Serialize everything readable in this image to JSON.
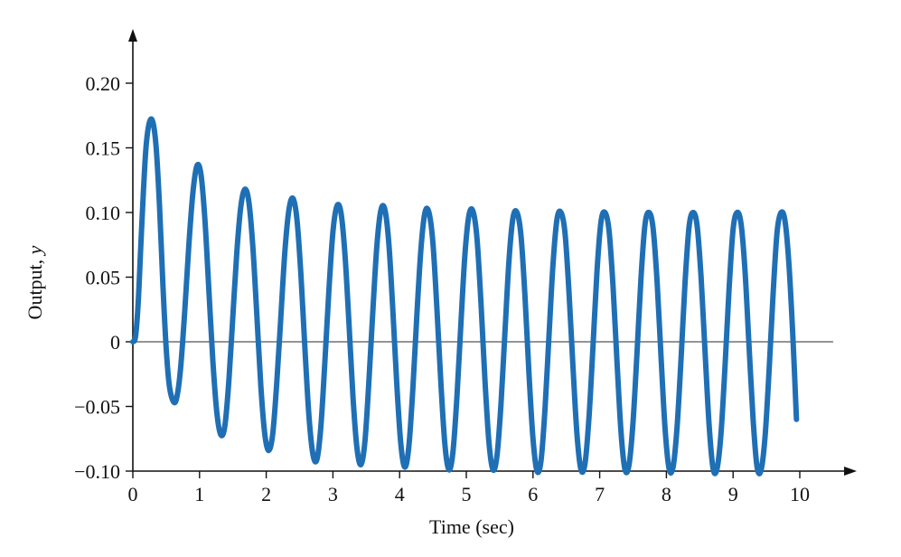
{
  "chart_data": {
    "type": "line",
    "title": "",
    "xlabel": "Time (sec)",
    "ylabel_main": "Output, ",
    "ylabel_var": "y",
    "xlim": [
      0,
      10.8
    ],
    "ylim": [
      -0.1,
      0.235
    ],
    "x_ticks": [
      0,
      1,
      2,
      3,
      4,
      5,
      6,
      7,
      8,
      9,
      10
    ],
    "x_tick_labels": [
      "0",
      "1",
      "2",
      "3",
      "4",
      "5",
      "6",
      "7",
      "8",
      "9",
      "10"
    ],
    "y_ticks": [
      -0.1,
      -0.05,
      0,
      0.05,
      0.1,
      0.15,
      0.2
    ],
    "y_tick_labels": [
      "−0.10",
      "−0.05",
      "0",
      "0.05",
      "0.10",
      "0.15",
      "0.20"
    ],
    "zero_line_xmax": 10.5,
    "grid": false,
    "legend": "none",
    "series": [
      {
        "color": "#1f6fb5",
        "x": [
          0,
          0.04,
          0.08,
          0.12,
          0.16,
          0.2,
          0.25,
          0.3,
          0.35,
          0.4,
          0.45,
          0.5,
          0.55,
          0.62,
          0.67,
          0.72,
          0.78,
          0.84,
          0.9,
          0.96,
          1.02,
          1.08,
          1.14,
          1.2,
          1.26,
          1.32,
          1.38,
          1.44,
          1.5,
          1.56,
          1.62,
          1.68,
          1.74,
          1.8,
          1.86,
          1.92,
          1.98,
          2.04,
          2.1,
          2.16,
          2.22,
          2.28,
          2.34,
          2.4,
          2.46,
          2.52,
          2.58,
          2.64,
          2.7,
          2.76,
          2.82,
          2.88,
          2.94,
          3.0,
          3.06,
          3.12,
          3.18,
          3.24,
          3.3,
          3.36,
          3.42,
          3.48,
          3.54,
          3.6,
          3.66,
          3.72,
          3.78,
          3.84,
          3.9,
          3.96,
          4.02,
          4.08,
          4.14,
          4.2,
          4.26,
          4.32,
          4.38,
          4.44,
          4.5,
          4.56,
          4.62,
          4.68,
          4.74,
          4.8,
          4.86,
          4.92,
          4.98,
          5.04,
          5.1,
          5.16,
          5.22,
          5.28,
          5.34,
          5.4,
          5.46,
          5.52,
          5.58,
          5.64,
          5.7,
          5.76,
          5.82,
          5.88,
          5.94,
          6.0,
          6.06,
          6.12,
          6.18,
          6.24,
          6.3,
          6.36,
          6.42,
          6.48,
          6.54,
          6.6,
          6.66,
          6.72,
          6.78,
          6.84,
          6.9,
          6.96,
          7.02,
          7.08,
          7.14,
          7.2,
          7.26,
          7.32,
          7.38,
          7.44,
          7.5,
          7.56,
          7.62,
          7.68,
          7.74,
          7.8,
          7.86,
          7.92,
          7.98,
          8.04,
          8.1,
          8.16,
          8.22,
          8.28,
          8.34,
          8.4,
          8.46,
          8.52,
          8.58,
          8.64,
          8.7,
          8.76,
          8.82,
          8.88,
          8.94,
          9.0,
          9.06,
          9.12,
          9.18,
          9.24,
          9.3,
          9.36,
          9.42,
          9.48,
          9.54,
          9.6,
          9.66,
          9.72,
          9.78,
          9.84,
          9.9,
          9.95
        ],
        "y": [
          0,
          0.004,
          0.03,
          0.075,
          0.118,
          0.152,
          0.17,
          0.17,
          0.15,
          0.105,
          0.045,
          -0.005,
          -0.035,
          -0.047,
          -0.04,
          -0.018,
          0.025,
          0.075,
          0.115,
          0.136,
          0.13,
          0.095,
          0.04,
          -0.015,
          -0.055,
          -0.072,
          -0.065,
          -0.03,
          0.02,
          0.07,
          0.105,
          0.118,
          0.108,
          0.073,
          0.02,
          -0.035,
          -0.072,
          -0.084,
          -0.07,
          -0.03,
          0.02,
          0.07,
          0.102,
          0.111,
          0.095,
          0.052,
          -0.005,
          -0.057,
          -0.087,
          -0.091,
          -0.065,
          -0.015,
          0.04,
          0.085,
          0.105,
          0.1,
          0.068,
          0.015,
          -0.042,
          -0.082,
          -0.095,
          -0.077,
          -0.03,
          0.025,
          0.075,
          0.102,
          0.102,
          0.075,
          0.023,
          -0.035,
          -0.08,
          -0.097,
          -0.08,
          -0.035,
          0.022,
          0.072,
          0.1,
          0.1,
          0.076,
          0.025,
          -0.033,
          -0.08,
          -0.099,
          -0.085,
          -0.042,
          0.015,
          0.068,
          0.098,
          0.101,
          0.08,
          0.03,
          -0.03,
          -0.078,
          -0.099,
          -0.088,
          -0.048,
          0.008,
          0.063,
          0.096,
          0.1,
          0.082,
          0.035,
          -0.025,
          -0.075,
          -0.1,
          -0.092,
          -0.052,
          0.005,
          0.06,
          0.095,
          0.1,
          0.084,
          0.038,
          -0.02,
          -0.072,
          -0.099,
          -0.094,
          -0.058,
          -0.003,
          0.055,
          0.093,
          0.1,
          0.086,
          0.043,
          -0.016,
          -0.07,
          -0.099,
          -0.095,
          -0.062,
          -0.008,
          0.05,
          0.091,
          0.1,
          0.088,
          0.047,
          -0.012,
          -0.067,
          -0.098,
          -0.097,
          -0.066,
          -0.013,
          0.046,
          0.089,
          0.1,
          0.09,
          0.05,
          -0.008,
          -0.064,
          -0.098,
          -0.098,
          -0.07,
          -0.018,
          0.041,
          0.087,
          0.1,
          0.091,
          0.054,
          -0.004,
          -0.06,
          -0.097,
          -0.099,
          -0.073,
          -0.022,
          0.037,
          0.085,
          0.1,
          0.093,
          0.058,
          0.0,
          -0.06
        ]
      }
    ]
  }
}
